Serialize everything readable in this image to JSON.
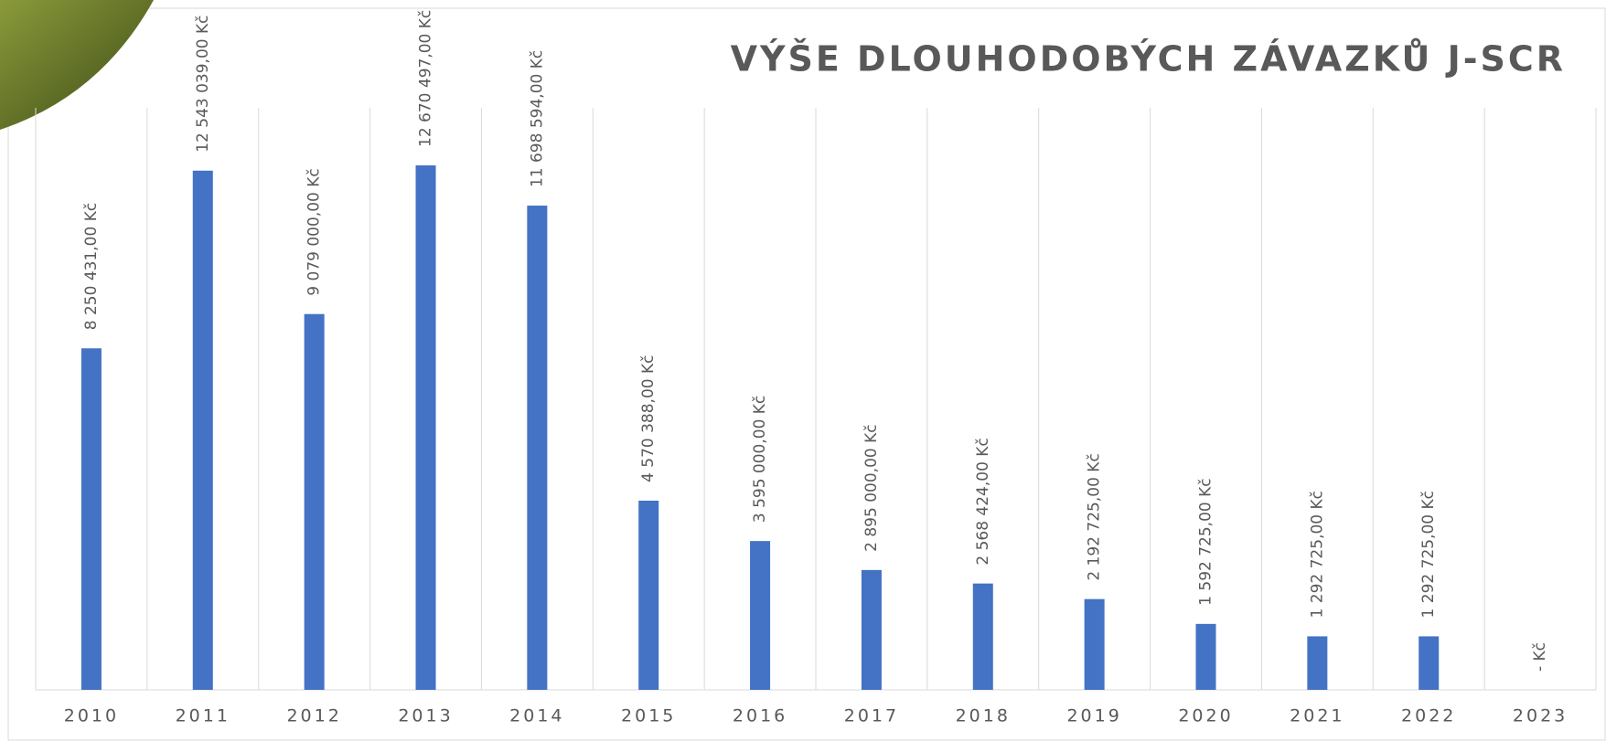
{
  "chart_data": {
    "type": "bar",
    "title": "VÝŠE DLOUHODOBÝCH ZÁVAZKŮ J-SCR",
    "categories": [
      "2010",
      "2011",
      "2012",
      "2013",
      "2014",
      "2015",
      "2016",
      "2017",
      "2018",
      "2019",
      "2020",
      "2021",
      "2022",
      "2023"
    ],
    "values": [
      8250431,
      12543039,
      9079000,
      12670497,
      11698594,
      4570388,
      3595000,
      2895000,
      2568424,
      2192725,
      1592725,
      1292725,
      1292725,
      0
    ],
    "value_labels": [
      "8 250 431,00 Kč",
      "12 543 039,00 Kč",
      "9 079 000,00 Kč",
      "12 670 497,00 Kč",
      "11 698 594,00 Kč",
      "4 570 388,00 Kč",
      "3 595 000,00 Kč",
      "2 895 000,00 Kč",
      "2 568 424,00 Kč",
      "2 192 725,00 Kč",
      "1 592 725,00 Kč",
      "1 292 725,00 Kč",
      "1 292 725,00 Kč",
      "-   Kč"
    ],
    "color": "#4472c4",
    "grid": true
  }
}
